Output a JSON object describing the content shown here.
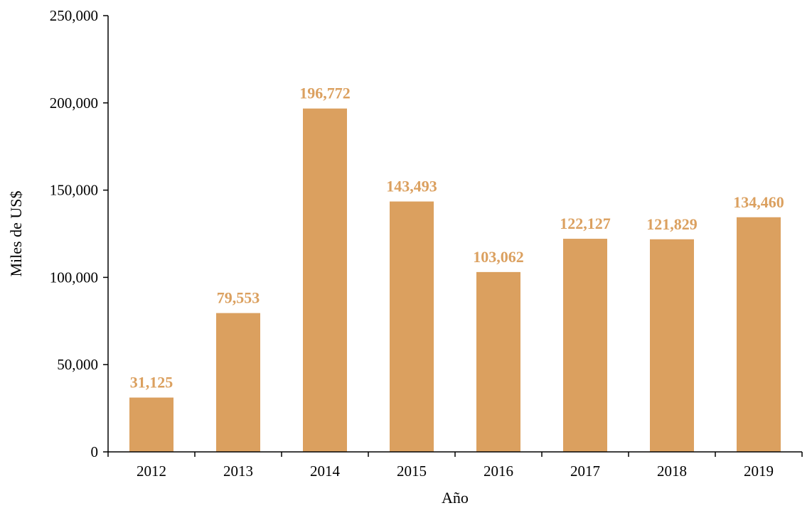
{
  "chart_data": {
    "type": "bar",
    "title": "",
    "xlabel": "Año",
    "ylabel": "Miles de US$",
    "categories": [
      "2012",
      "2013",
      "2014",
      "2015",
      "2016",
      "2017",
      "2018",
      "2019"
    ],
    "values": [
      31125,
      79553,
      196772,
      143493,
      103062,
      122127,
      121829,
      134460
    ],
    "data_labels": [
      "31,125",
      "79,553",
      "196,772",
      "143,493",
      "103,062",
      "122,127",
      "121,829",
      "134,460"
    ],
    "ylim": [
      0,
      250000
    ],
    "yticks": [
      0,
      50000,
      100000,
      150000,
      200000,
      250000
    ],
    "ytick_labels": [
      "0",
      "50,000",
      "100,000",
      "150,000",
      "200,000",
      "250,000"
    ],
    "grid": false,
    "legend": "none",
    "colors": {
      "bar": "#DBA05F",
      "data_label": "#DBA05F",
      "axis": "#000000"
    }
  }
}
